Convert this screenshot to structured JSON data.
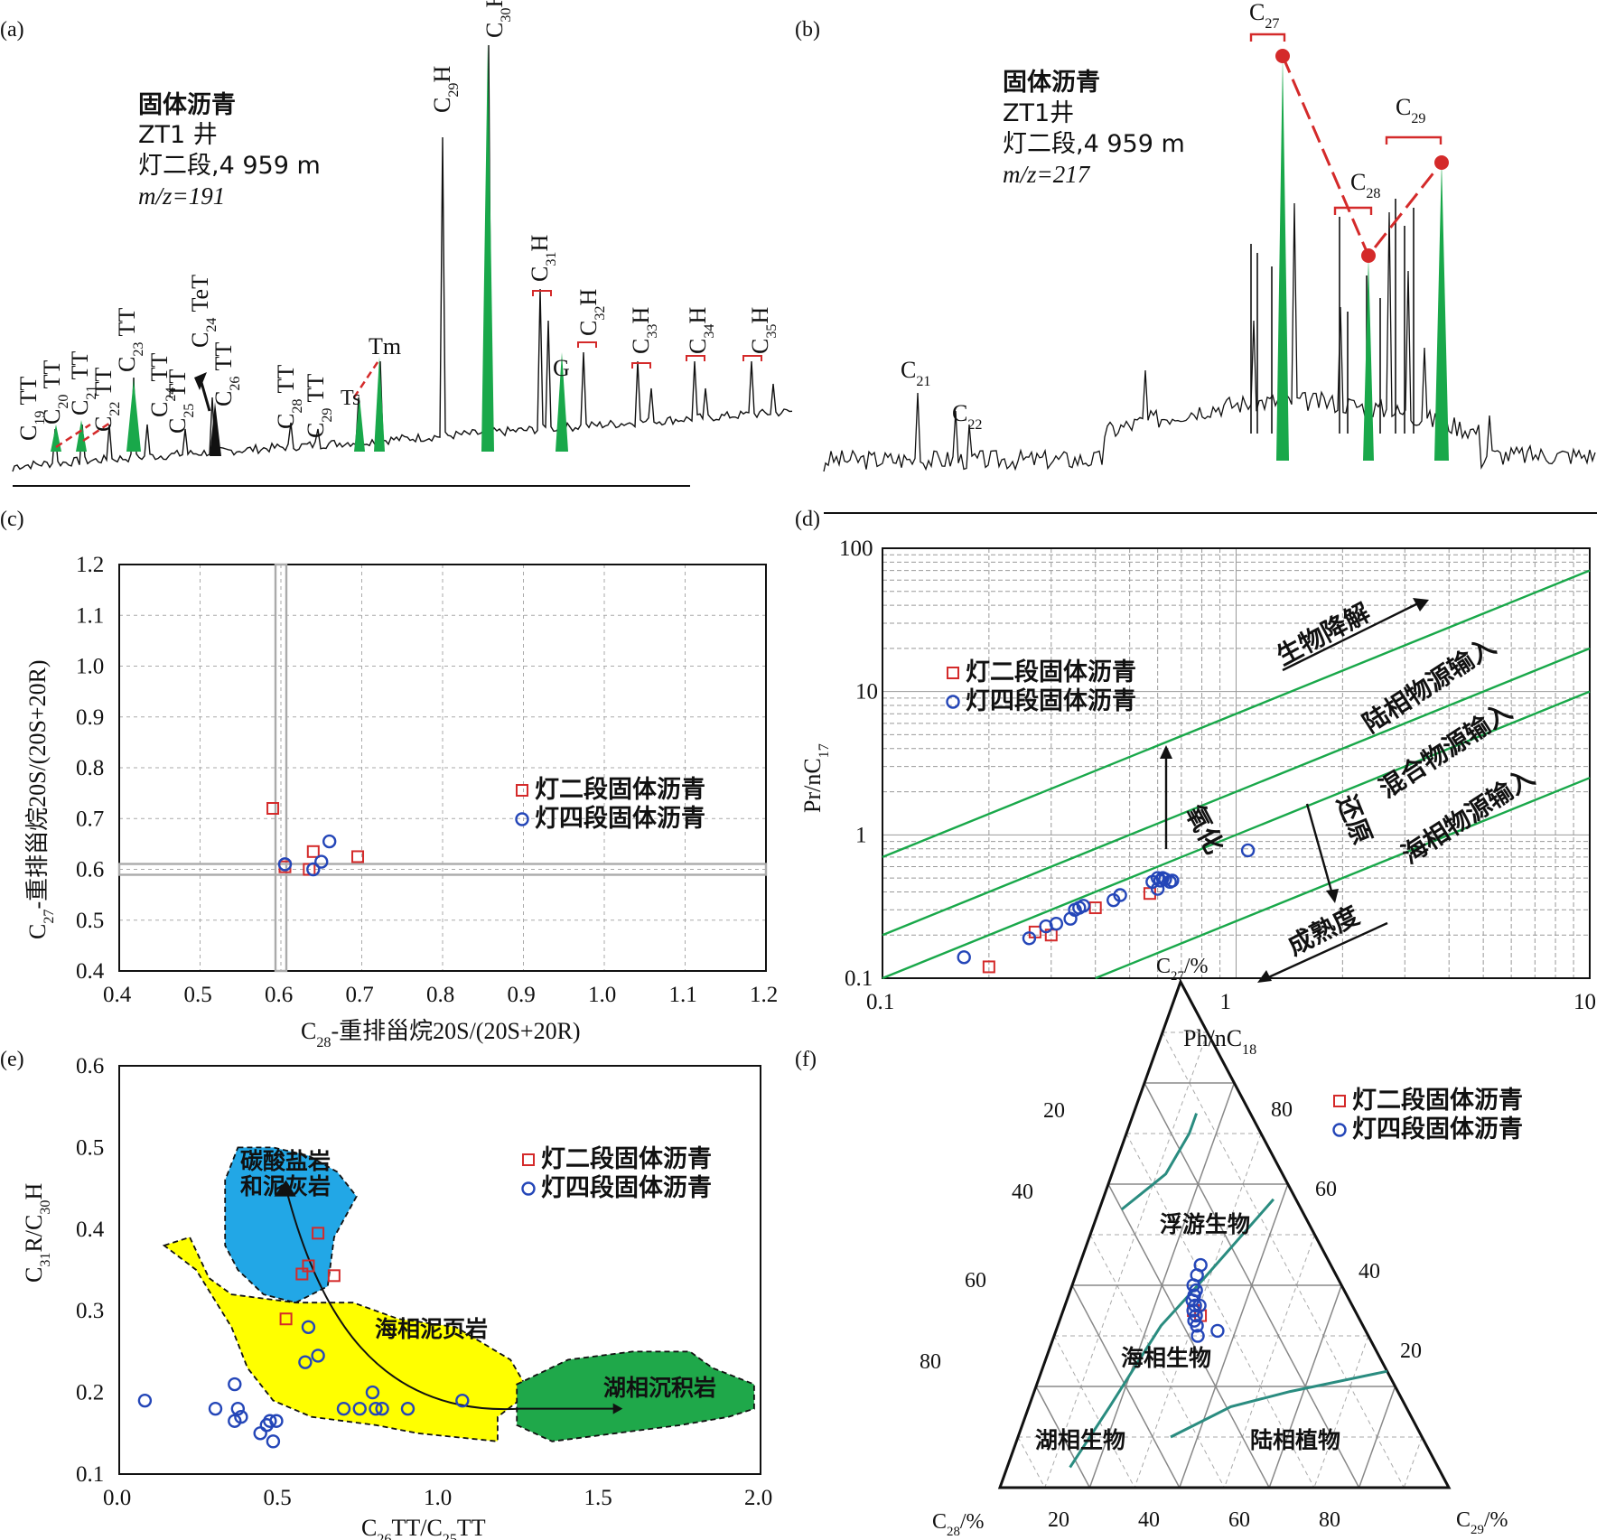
{
  "colors": {
    "red": "#d42a2a",
    "blue": "#2446b8",
    "green": "#19a84a",
    "teal": "#2a8c80",
    "carbonate": "#22a7e6",
    "marine_shale": "#ffff00",
    "lacustrine": "#1fa84a"
  },
  "panels": {
    "a": {
      "letter": "(a)",
      "info": [
        "固体沥青",
        "ZT1 井",
        "灯二段,4 959 m",
        "m/z=191"
      ],
      "peaks": [
        "C19TT",
        "C20TT",
        "C21TT",
        "C22TT",
        "C23TT",
        "C24TT",
        "C25TT",
        "C24TeT",
        "C26TT",
        "C28TT",
        "C29TT",
        "Ts",
        "Tm",
        "C29H",
        "C30H",
        "C31H",
        "G",
        "C32H",
        "C33H",
        "C34H",
        "C35H"
      ]
    },
    "b": {
      "letter": "(b)",
      "info": [
        "固体沥青",
        "ZT1井",
        "灯二段,4 959 m",
        "m/z=217"
      ],
      "peaks": [
        "C21",
        "C22",
        "C27",
        "C28",
        "C29"
      ]
    },
    "c": {
      "letter": "(c)",
      "xlabel": "C28-重排甾烷20S/(20S+20R)",
      "ylabel": "C27-重排甾烷20S/(20S+20R)",
      "xticks": [
        "0.4",
        "0.5",
        "0.6",
        "0.7",
        "0.8",
        "0.9",
        "1.0",
        "1.1",
        "1.2"
      ],
      "yticks": [
        "0.4",
        "0.5",
        "0.6",
        "0.7",
        "0.8",
        "0.9",
        "1.0",
        "1.1",
        "1.2"
      ],
      "legend": [
        "灯二段固体沥青",
        "灯四段固体沥青"
      ]
    },
    "d": {
      "letter": "(d)",
      "xlabel": "Ph/nC18",
      "ylabel": "Pr/nC17",
      "xticks": [
        "0.1",
        "1",
        "10"
      ],
      "yticks": [
        "0.1",
        "1",
        "10",
        "100"
      ],
      "legend": [
        "灯二段固体沥青",
        "灯四段固体沥青"
      ],
      "zones": [
        "陆相物源输入",
        "混合物源输入",
        "海相物源输入"
      ],
      "arrows": [
        "生物降解",
        "氧化",
        "还原",
        "成熟度"
      ]
    },
    "e": {
      "letter": "(e)",
      "xlabel": "C26TT/C25TT",
      "ylabel": "C31R/C30H",
      "xticks": [
        "0.0",
        "0.5",
        "1.0",
        "1.5",
        "2.0"
      ],
      "yticks": [
        "0.1",
        "0.2",
        "0.3",
        "0.4",
        "0.5",
        "0.6"
      ],
      "legend": [
        "灯二段固体沥青",
        "灯四段固体沥青"
      ],
      "regions": [
        "碳酸盐岩",
        "和泥灰岩",
        "海相泥页岩",
        "湖相沉积岩"
      ]
    },
    "f": {
      "letter": "(f)",
      "axes": [
        "C27/%",
        "C28/%",
        "C29/%"
      ],
      "ticks": [
        "20",
        "40",
        "60",
        "80"
      ],
      "legend": [
        "灯二段固体沥青",
        "灯四段固体沥青"
      ],
      "regions": [
        "浮游生物",
        "海相生物",
        "湖相生物",
        "陆相植物"
      ]
    }
  },
  "chart_data": [
    {
      "panel": "c",
      "type": "scatter",
      "xlim": [
        0.4,
        1.2
      ],
      "ylim": [
        0.4,
        1.2
      ],
      "grid": true,
      "legend_position": "right",
      "series": [
        {
          "name": "灯二段固体沥青",
          "marker": "square",
          "x": [
            0.59,
            0.605,
            0.635,
            0.64,
            0.695
          ],
          "y": [
            0.72,
            0.605,
            0.6,
            0.635,
            0.625
          ]
        },
        {
          "name": "灯四段固体沥青",
          "marker": "circle",
          "x": [
            0.605,
            0.64,
            0.65,
            0.66
          ],
          "y": [
            0.61,
            0.6,
            0.615,
            0.655
          ]
        }
      ]
    },
    {
      "panel": "d",
      "type": "scatter",
      "log_x": true,
      "log_y": true,
      "xlim": [
        0.1,
        10
      ],
      "ylim": [
        0.1,
        100
      ],
      "grid": true,
      "legend_position": "upper-left",
      "series": [
        {
          "name": "灯二段固体沥青",
          "marker": "square",
          "x": [
            0.2,
            0.27,
            0.3,
            0.4,
            0.57
          ],
          "y": [
            0.12,
            0.21,
            0.2,
            0.31,
            0.39
          ]
        },
        {
          "name": "灯四段固体沥青",
          "marker": "circle",
          "x": [
            0.17,
            0.26,
            0.29,
            0.31,
            0.34,
            0.35,
            0.36,
            0.37,
            0.45,
            0.47,
            0.58,
            0.6,
            0.61,
            0.62,
            0.63,
            0.65,
            0.66,
            0.6,
            1.08
          ],
          "y": [
            0.14,
            0.19,
            0.23,
            0.24,
            0.26,
            0.3,
            0.31,
            0.32,
            0.35,
            0.38,
            0.47,
            0.5,
            0.48,
            0.5,
            0.49,
            0.47,
            0.48,
            0.42,
            0.78
          ]
        }
      ]
    },
    {
      "panel": "e",
      "type": "scatter",
      "xlim": [
        0.0,
        2.0
      ],
      "ylim": [
        0.1,
        0.6
      ],
      "legend_position": "upper-right",
      "series": [
        {
          "name": "灯二段固体沥青",
          "marker": "square",
          "x": [
            0.52,
            0.57,
            0.59,
            0.62,
            0.67
          ],
          "y": [
            0.29,
            0.345,
            0.355,
            0.395,
            0.343
          ]
        },
        {
          "name": "灯四段固体沥青",
          "marker": "circle",
          "x": [
            0.08,
            0.3,
            0.36,
            0.37,
            0.36,
            0.38,
            0.44,
            0.46,
            0.47,
            0.48,
            0.49,
            0.58,
            0.59,
            0.62,
            0.7,
            0.75,
            0.8,
            0.79,
            0.82,
            0.9,
            1.07
          ],
          "y": [
            0.19,
            0.18,
            0.21,
            0.18,
            0.165,
            0.17,
            0.15,
            0.16,
            0.165,
            0.14,
            0.165,
            0.237,
            0.28,
            0.245,
            0.18,
            0.18,
            0.18,
            0.2,
            0.18,
            0.18,
            0.19
          ]
        }
      ]
    },
    {
      "panel": "f",
      "type": "ternary",
      "axes": [
        "C27",
        "C28",
        "C29"
      ],
      "series": [
        {
          "name": "灯二段固体沥青",
          "marker": "square",
          "points": [
            [
              35,
              36,
              29
            ],
            [
              34,
              35,
              31
            ]
          ]
        },
        {
          "name": "灯四段固体沥青",
          "marker": "circle",
          "points": [
            [
              44,
              29,
              27
            ],
            [
              42,
              31,
              27
            ],
            [
              40,
              33,
              27
            ],
            [
              38,
              34,
              28
            ],
            [
              37,
              35,
              28
            ],
            [
              36,
              35,
              29
            ],
            [
              35,
              36,
              29
            ],
            [
              34,
              36,
              30
            ],
            [
              33,
              37,
              30
            ],
            [
              32,
              37,
              31
            ],
            [
              30,
              38,
              32
            ],
            [
              31,
              33,
              36
            ],
            [
              36,
              34,
              30
            ],
            [
              39,
              33,
              28
            ]
          ]
        }
      ]
    }
  ]
}
